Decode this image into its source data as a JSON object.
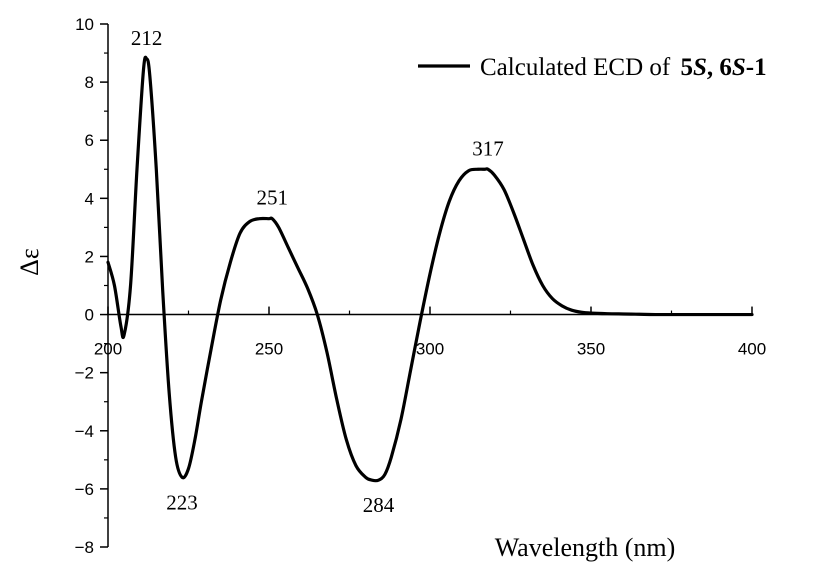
{
  "chart_data": {
    "type": "line",
    "title": "",
    "xlabel": "Wavelength (nm)",
    "ylabel": "Δε",
    "xlim": [
      200,
      400
    ],
    "ylim": [
      -8,
      10
    ],
    "x_ticks": [
      200,
      250,
      300,
      350,
      400
    ],
    "y_ticks": [
      -8,
      -6,
      -4,
      -2,
      0,
      2,
      4,
      6,
      8,
      10
    ],
    "x_minor_step": 25,
    "y_minor_step": 1,
    "grid": false,
    "legend": {
      "placement": "top-right",
      "text_plain": "Calculated ECD of ",
      "text_bold_1": "5",
      "text_bold_italic_1": "S",
      "text_sep": ", ",
      "text_bold_2": "6",
      "text_bold_italic_2": "S",
      "text_bold_3": "-1"
    },
    "annotations": [
      {
        "text": "212",
        "x": 212,
        "y": 8.8,
        "pos": "above"
      },
      {
        "text": "223",
        "x": 223,
        "y": -5.6,
        "pos": "below"
      },
      {
        "text": "251",
        "x": 251,
        "y": 3.3,
        "pos": "above"
      },
      {
        "text": "284",
        "x": 284,
        "y": -5.7,
        "pos": "below"
      },
      {
        "text": "317",
        "x": 318,
        "y": 5.0,
        "pos": "above"
      }
    ],
    "series": [
      {
        "color": "#000000",
        "x": [
          200,
          202,
          204,
          205,
          207,
          209,
          211,
          212,
          213,
          215,
          217,
          219,
          221,
          223,
          225,
          227,
          229,
          232,
          235,
          238,
          241,
          244,
          247,
          250,
          251,
          253,
          256,
          259,
          262,
          265,
          268,
          271,
          274,
          277,
          280,
          282,
          284,
          286,
          288,
          291,
          294,
          297,
          300,
          303,
          306,
          309,
          312,
          315,
          317,
          318,
          320,
          323,
          326,
          329,
          332,
          335,
          338,
          341,
          344,
          347,
          350,
          355,
          360,
          365,
          370,
          380,
          390,
          400
        ],
        "y": [
          1.8,
          1.0,
          -0.4,
          -0.7,
          1.0,
          5.0,
          8.4,
          8.8,
          8.2,
          5.0,
          0.8,
          -2.7,
          -4.9,
          -5.6,
          -5.3,
          -4.3,
          -3.0,
          -1.2,
          0.5,
          1.8,
          2.8,
          3.2,
          3.3,
          3.3,
          3.3,
          3.0,
          2.3,
          1.6,
          0.9,
          0.0,
          -1.3,
          -2.9,
          -4.3,
          -5.2,
          -5.6,
          -5.7,
          -5.7,
          -5.5,
          -4.9,
          -3.6,
          -1.9,
          -0.2,
          1.4,
          2.8,
          3.9,
          4.6,
          4.95,
          5.0,
          5.0,
          5.0,
          4.8,
          4.3,
          3.5,
          2.6,
          1.7,
          1.0,
          0.55,
          0.3,
          0.15,
          0.08,
          0.05,
          0.03,
          0.02,
          0.01,
          0.0,
          0.0,
          0.0,
          0.0
        ]
      }
    ]
  }
}
